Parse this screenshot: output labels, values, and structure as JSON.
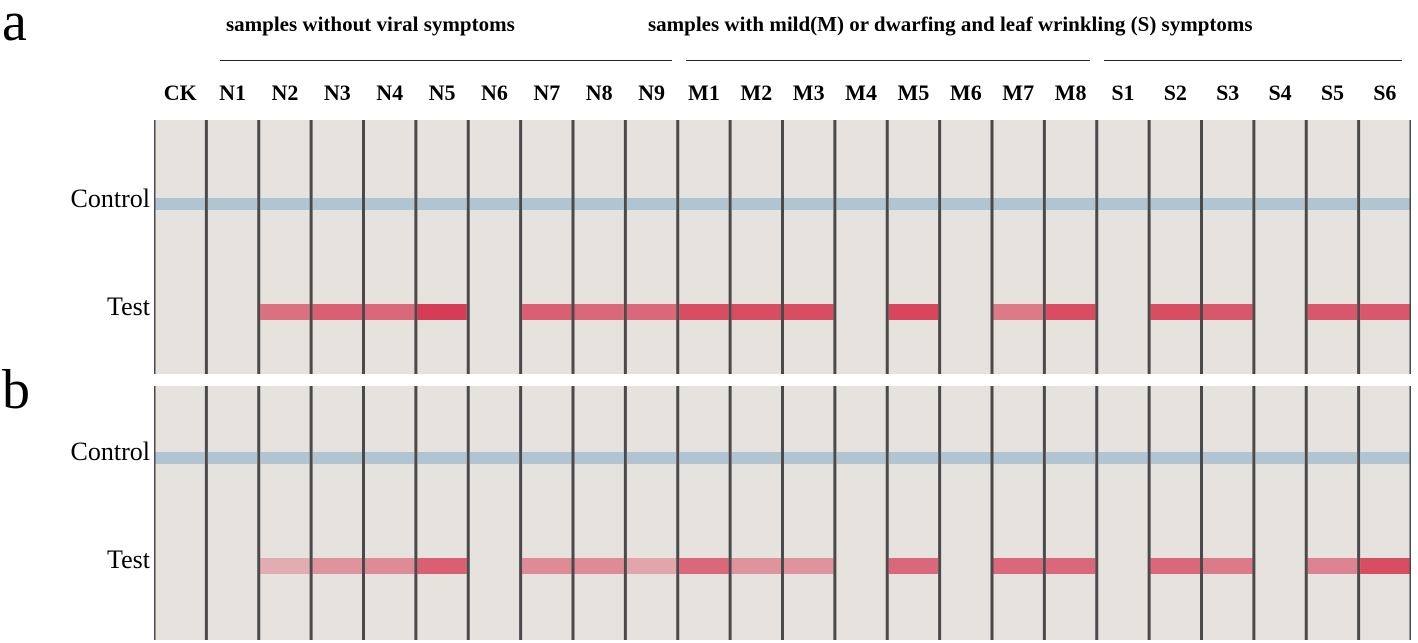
{
  "panels": [
    {
      "letter": "a",
      "control_label": "Control",
      "test_label": "Test"
    },
    {
      "letter": "b",
      "control_label": "Control",
      "test_label": "Test"
    }
  ],
  "groups": {
    "no_symptoms": "samples without viral symptoms",
    "with_symptoms": "samples with mild(M) or dwarfing and leaf wrinkling (S) symptoms"
  },
  "lanes": [
    "CK",
    "N1",
    "N2",
    "N3",
    "N4",
    "N5",
    "N6",
    "N7",
    "N8",
    "N9",
    "M1",
    "M2",
    "M3",
    "M4",
    "M5",
    "M6",
    "M7",
    "M8",
    "S1",
    "S2",
    "S3",
    "S4",
    "S5",
    "S6"
  ],
  "test_line_intensity": {
    "a": [
      0,
      0,
      0.65,
      0.75,
      0.7,
      0.95,
      0,
      0.75,
      0.7,
      0.7,
      0.85,
      0.85,
      0.85,
      0,
      0.9,
      0,
      0.6,
      0.85,
      0,
      0.85,
      0.8,
      0,
      0.8,
      0.8
    ],
    "b": [
      0,
      0,
      0.3,
      0.45,
      0.5,
      0.75,
      0,
      0.5,
      0.5,
      0.35,
      0.7,
      0.45,
      0.45,
      0,
      0.7,
      0,
      0.7,
      0.7,
      0,
      0.7,
      0.6,
      0,
      0.55,
      0.85
    ]
  },
  "colors": {
    "strip": "#e6e3df",
    "control_line": "#9fb9cc",
    "test_line": "#d6334e",
    "gap": "#4a4a4a"
  }
}
